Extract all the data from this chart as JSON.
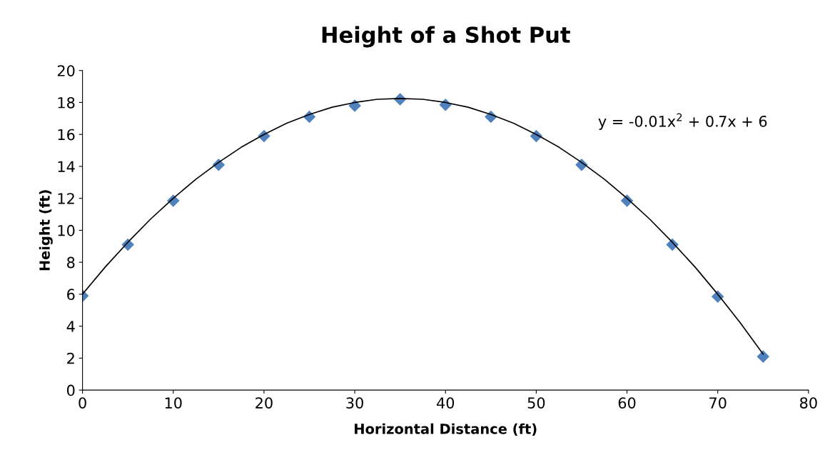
{
  "chart_data": {
    "type": "scatter",
    "title": "Height of a Shot Put",
    "xlabel": "Horizontal Distance (ft)",
    "ylabel": "Height (ft)",
    "x": [
      0,
      5,
      10,
      15,
      20,
      25,
      30,
      35,
      40,
      45,
      50,
      55,
      60,
      65,
      70,
      75
    ],
    "series": [
      {
        "color": "#4f81bd",
        "marker": "diamond",
        "values": [
          5.9,
          9.1,
          11.85,
          14.1,
          15.9,
          17.1,
          17.8,
          18.2,
          17.85,
          17.1,
          15.9,
          14.1,
          11.85,
          9.1,
          5.85,
          2.1
        ]
      },
      {
        "type": "line",
        "color": "#000000",
        "marker": "none",
        "line_style": "solid",
        "x": [
          0,
          2.5,
          5,
          7.5,
          10,
          12.5,
          15,
          17.5,
          20,
          22.5,
          25,
          27.5,
          30,
          32.5,
          35,
          37.5,
          40,
          42.5,
          45,
          47.5,
          50,
          52.5,
          55,
          57.5,
          60,
          62.5,
          65,
          67.5,
          70,
          72.5,
          75
        ],
        "values": [
          6,
          7.7,
          9.25,
          10.7,
          12,
          13.2,
          14.25,
          15.2,
          16,
          16.7,
          17.25,
          17.7,
          18,
          18.2,
          18.25,
          18.2,
          18,
          17.7,
          17.25,
          16.7,
          16,
          15.2,
          14.25,
          13.2,
          12,
          10.7,
          9.25,
          7.7,
          6,
          4.2,
          2.25
        ]
      }
    ],
    "annotations": [
      "y = -0.01x$^{2}$ + 0.7x + 6"
    ],
    "xlim": [
      0,
      80
    ],
    "xticks": [
      0,
      10,
      20,
      30,
      40,
      50,
      60,
      70,
      80
    ],
    "ylim": [
      0,
      20
    ],
    "yticks": [
      0,
      2,
      4,
      6,
      8,
      10,
      12,
      14,
      16,
      18,
      20
    ],
    "grid": false,
    "legend": false
  }
}
